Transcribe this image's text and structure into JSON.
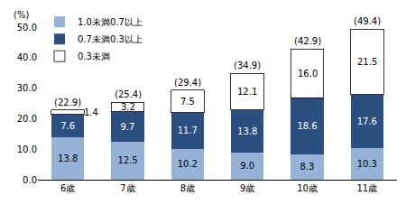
{
  "chart_data": {
    "type": "bar",
    "stacked": true,
    "ylabel": "(%)",
    "categories": [
      "6歳",
      "7歳",
      "8歳",
      "9歳",
      "10歳",
      "11歳"
    ],
    "series": [
      {
        "name": "1.0未満0.7以上",
        "color": "#95b3d7",
        "values": [
          13.8,
          12.5,
          10.2,
          9.0,
          8.3,
          10.3
        ],
        "value_labels": [
          "13.8",
          "12.5",
          "10.2",
          "9.0",
          "8.3",
          "10.3"
        ]
      },
      {
        "name": "0.7未満0.3以上",
        "color": "#2b4f80",
        "values": [
          7.6,
          9.7,
          11.7,
          13.8,
          18.6,
          17.6
        ],
        "value_labels": [
          "7.6",
          "9.7",
          "11.7",
          "13.8",
          "18.6",
          "17.6"
        ]
      },
      {
        "name": "0.3未満",
        "color": "#ffffff",
        "values": [
          1.4,
          3.2,
          7.5,
          12.1,
          16.0,
          21.5
        ],
        "value_labels": [
          "1.4",
          "3.2",
          "7.5",
          "12.1",
          "16.0",
          "21.5"
        ]
      }
    ],
    "totals": [
      22.9,
      25.4,
      29.4,
      34.9,
      42.9,
      49.4
    ],
    "total_labels": [
      "(22.9)",
      "(25.4)",
      "(29.4)",
      "(34.9)",
      "(42.9)",
      "(49.4)"
    ],
    "ylim": [
      0,
      50
    ],
    "yticks": [
      {
        "value": 0,
        "label": "0.0"
      },
      {
        "value": 10,
        "label": "10.0"
      },
      {
        "value": 20,
        "label": "20.0"
      },
      {
        "value": 30,
        "label": "30.0"
      },
      {
        "value": 40,
        "label": "40.0"
      },
      {
        "value": 50,
        "label": "50.0"
      }
    ],
    "data_labels": true,
    "legend": "top left",
    "grid": false
  }
}
